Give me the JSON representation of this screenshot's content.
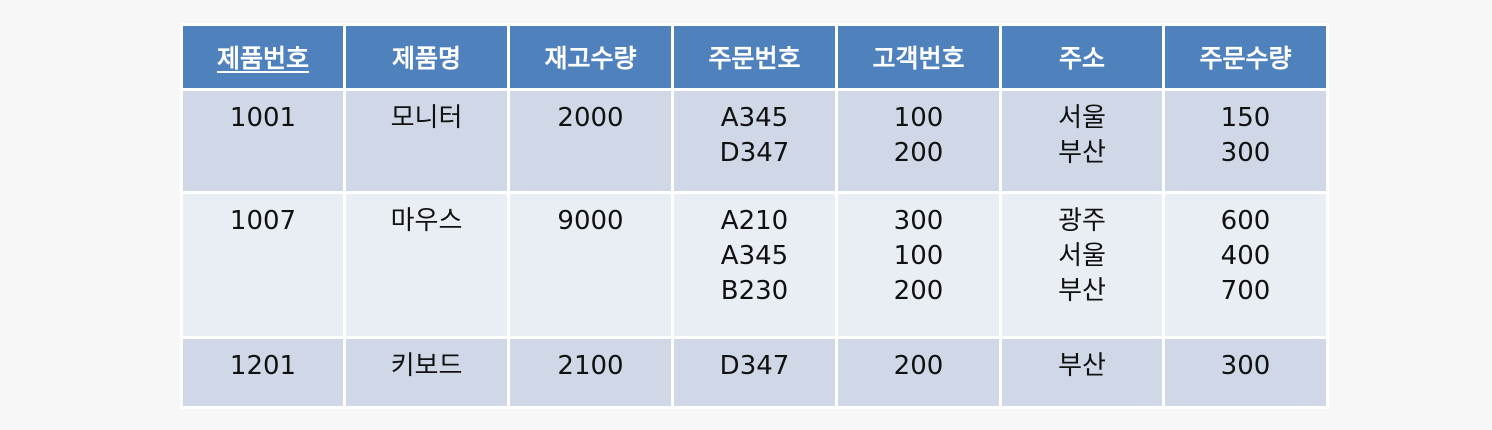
{
  "table": {
    "headers": [
      "제품번호",
      "제품명",
      "재고수량",
      "주문번호",
      "고객번호",
      "주소",
      "주문수량"
    ],
    "rows": [
      {
        "product_id": "1001",
        "product_name": "모니터",
        "stock": "2000",
        "order_ids": [
          "A345",
          "D347"
        ],
        "customer_ids": [
          "100",
          "200"
        ],
        "addresses": [
          "서울",
          "부산"
        ],
        "order_qtys": [
          "150",
          "300"
        ]
      },
      {
        "product_id": "1007",
        "product_name": "마우스",
        "stock": "9000",
        "order_ids": [
          "A210",
          "A345",
          "B230"
        ],
        "customer_ids": [
          "300",
          "100",
          "200"
        ],
        "addresses": [
          "광주",
          "서울",
          "부산"
        ],
        "order_qtys": [
          "600",
          "400",
          "700"
        ]
      },
      {
        "product_id": "1201",
        "product_name": "키보드",
        "stock": "2100",
        "order_ids": [
          "D347"
        ],
        "customer_ids": [
          "200"
        ],
        "addresses": [
          "부산"
        ],
        "order_qtys": [
          "300"
        ]
      }
    ],
    "colors": {
      "header_bg": "#4f81bd",
      "row_dark": "#d0d8e8",
      "row_light": "#e9edf4"
    }
  }
}
